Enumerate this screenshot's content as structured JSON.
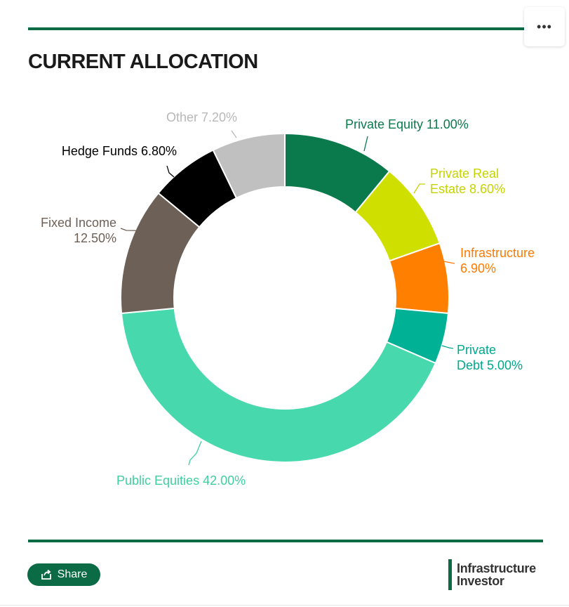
{
  "menu_icon": "ellipsis-icon",
  "menu_label": "•••",
  "title": "CURRENT ALLOCATION",
  "chart_data": {
    "type": "pie",
    "donut": true,
    "title": "CURRENT ALLOCATION",
    "slices": [
      {
        "name": "Private Equity",
        "value": 11.0,
        "label_lines": [
          "Private Equity 11.00%"
        ],
        "color": "#0a7a4c"
      },
      {
        "name": "Private Real Estate",
        "value": 8.6,
        "label_lines": [
          "Private Real",
          "Estate 8.60%"
        ],
        "color": "#cfdf00"
      },
      {
        "name": "Infrastructure",
        "value": 6.9,
        "label_lines": [
          "Infrastructure",
          "6.90%"
        ],
        "color": "#ff8000"
      },
      {
        "name": "Private Debt",
        "value": 5.0,
        "label_lines": [
          "Private",
          "Debt 5.00%"
        ],
        "color": "#00b195"
      },
      {
        "name": "Public Equities",
        "value": 42.0,
        "label_lines": [
          "Public Equities 42.00%"
        ],
        "color": "#47d9ad"
      },
      {
        "name": "Fixed Income",
        "value": 12.5,
        "label_lines": [
          "Fixed Income",
          "12.50%"
        ],
        "color": "#6d6056"
      },
      {
        "name": "Hedge Funds",
        "value": 6.8,
        "label_lines": [
          "Hedge Funds 6.80%"
        ],
        "color": "#000000"
      },
      {
        "name": "Other",
        "value": 7.2,
        "label_lines": [
          "Other 7.20%"
        ],
        "color": "#c0c0c0"
      }
    ]
  },
  "share": {
    "label": "Share",
    "icon": "share-icon"
  },
  "logo": {
    "line1": "Infrastructure",
    "line2": "Investor"
  }
}
